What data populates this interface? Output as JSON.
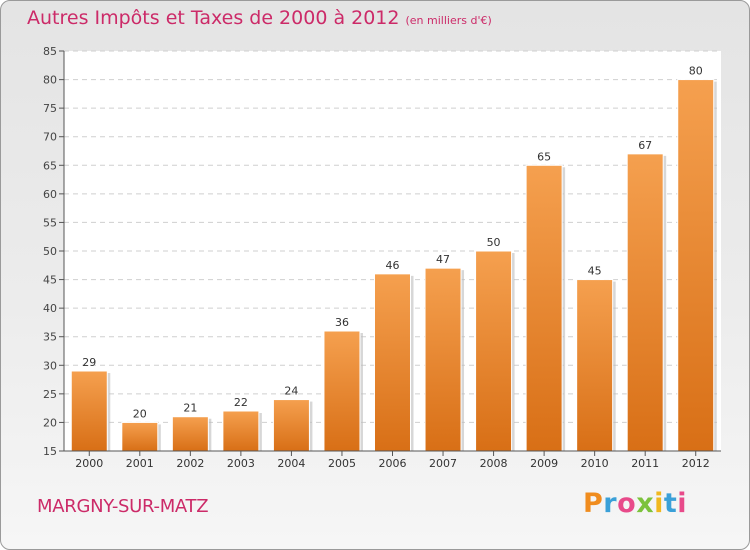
{
  "header": {
    "title": "Autres Impôts et Taxes de 2000 à 2012",
    "unit": "(en milliers d'€)"
  },
  "footer": {
    "commune": "MARGNY-SUR-MATZ",
    "logo_letters": [
      "P",
      "r",
      "o",
      "x",
      "i",
      "t",
      "i"
    ]
  },
  "colors": {
    "bar_top": "#f5a04f",
    "bar_bottom": "#d86f16",
    "title": "#cc2a68"
  },
  "chart_data": {
    "type": "bar",
    "categories": [
      "2000",
      "2001",
      "2002",
      "2003",
      "2004",
      "2005",
      "2006",
      "2007",
      "2008",
      "2009",
      "2010",
      "2011",
      "2012"
    ],
    "values": [
      29,
      20,
      21,
      22,
      24,
      36,
      46,
      47,
      50,
      65,
      45,
      67,
      80
    ],
    "ylim": [
      15,
      85
    ],
    "yticks": [
      15,
      20,
      25,
      30,
      35,
      40,
      45,
      50,
      55,
      60,
      65,
      70,
      75,
      80,
      85
    ],
    "grid": true,
    "data_labels": true
  }
}
